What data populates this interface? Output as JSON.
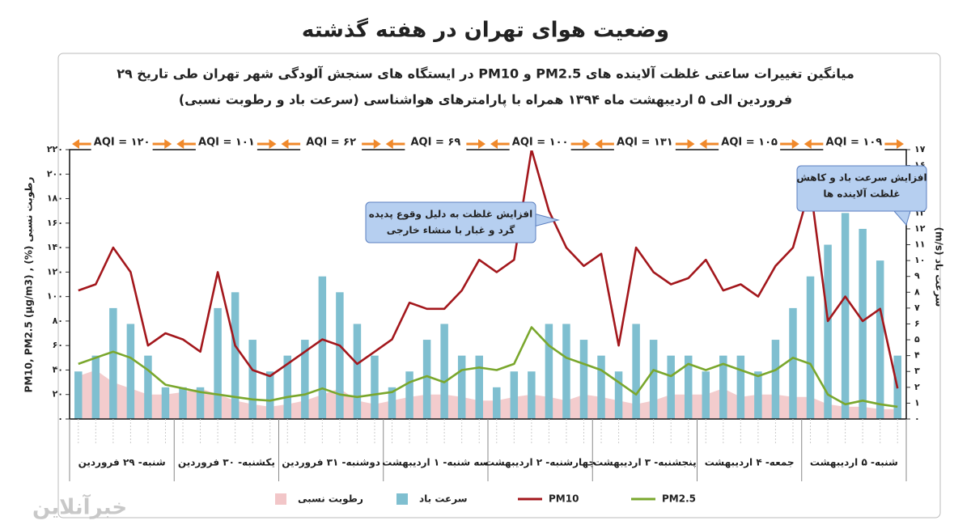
{
  "chart_data": {
    "type": "combo",
    "title": "وضعیت هوای تهران در هفته گذشته",
    "subtitle": [
      "میانگین تغییرات ساعتی غلظت آلاینده های PM2.5 و PM10 در ایستگاه های سنجش آلودگی شهر تهران طی تاریخ ۲۹",
      "فروردین الی ۵ اردیبهشت ماه ۱۳۹۴ همراه با پارامترهای هواشناسی (سرعت باد و رطوبت نسبی)"
    ],
    "y_label": "PM10, PM2.5 (µg/m3) , (%) رطوبت نسبی",
    "y2_label": "(m/s) سرعت باد",
    "days": [
      "شنبه- ۲۹ فروردین",
      "یکشنبه- ۳۰ فروردین",
      "دوشنبه- ۳۱ فروردین",
      "سه شنبه- ۱ اردیبهشت",
      "چهارشنبه- ۲ اردیبهشت",
      "پنجشنبه- ۳ اردیبهشت",
      "جمعه- ۴ اردیبهشت",
      "شنبه- ۵ اردیبهشت"
    ],
    "aqi": [
      "AQI = ۱۲۰",
      "AQI = ۱۰۱",
      "AQI = ۶۲",
      "AQI = ۶۹",
      "AQI = ۱۰۰",
      "AQI = ۱۳۱",
      "AQI = ۱۰۵",
      "AQI = ۱۰۹"
    ],
    "ylim": [
      0,
      220
    ],
    "yticks": [
      {
        "value": 0,
        "label": "۰"
      },
      {
        "value": 20,
        "label": "۲۰"
      },
      {
        "value": 40,
        "label": "۴۰"
      },
      {
        "value": 60,
        "label": "۶۰"
      },
      {
        "value": 80,
        "label": "۸۰"
      },
      {
        "value": 100,
        "label": "۱۰۰"
      },
      {
        "value": 120,
        "label": "۱۲۰"
      },
      {
        "value": 140,
        "label": "۱۴۰"
      },
      {
        "value": 160,
        "label": "۱۶۰"
      },
      {
        "value": 180,
        "label": "۱۸۰"
      },
      {
        "value": 200,
        "label": "۲۰۰"
      },
      {
        "value": 220,
        "label": "۲۲۰"
      }
    ],
    "y2lim": [
      0,
      17
    ],
    "y2ticks": [
      {
        "value": 0,
        "label": "۰"
      },
      {
        "value": 1,
        "label": "۱"
      },
      {
        "value": 2,
        "label": "۲"
      },
      {
        "value": 3,
        "label": "۳"
      },
      {
        "value": 4,
        "label": "۴"
      },
      {
        "value": 5,
        "label": "۵"
      },
      {
        "value": 6,
        "label": "۶"
      },
      {
        "value": 7,
        "label": "۷"
      },
      {
        "value": 8,
        "label": "۸"
      },
      {
        "value": 9,
        "label": "۹"
      },
      {
        "value": 10,
        "label": "۱۰"
      },
      {
        "value": 11,
        "label": "۱۱"
      },
      {
        "value": 12,
        "label": "۱۲"
      },
      {
        "value": 13,
        "label": "۱۳"
      },
      {
        "value": 14,
        "label": "۱۴"
      },
      {
        "value": 15,
        "label": "۱۵"
      },
      {
        "value": 16,
        "label": "۱۶"
      },
      {
        "value": 17,
        "label": "۱۷"
      }
    ],
    "series": [
      {
        "name": "رطوبت نسبی",
        "type": "area",
        "color": "#f2c6c8",
        "values": [
          35,
          40,
          30,
          25,
          20,
          20,
          22,
          25,
          20,
          15,
          12,
          10,
          12,
          15,
          20,
          25,
          15,
          12,
          15,
          18,
          20,
          20,
          18,
          15,
          15,
          18,
          20,
          18,
          15,
          20,
          18,
          15,
          12,
          15,
          20,
          20,
          20,
          25,
          18,
          20,
          20,
          18,
          18,
          12,
          10,
          10,
          8,
          8
        ]
      },
      {
        "name": "سرعت باد",
        "type": "bar",
        "axis": "y2",
        "color": "#7fbfd0",
        "values": [
          3,
          4,
          7,
          6,
          4,
          2,
          2,
          2,
          7,
          8,
          5,
          3,
          4,
          5,
          9,
          8,
          6,
          4,
          2,
          3,
          5,
          6,
          4,
          4,
          2,
          3,
          3,
          6,
          6,
          5,
          4,
          3,
          6,
          5,
          4,
          4,
          3,
          4,
          4,
          3,
          5,
          7,
          9,
          11,
          13,
          12,
          10,
          4
        ]
      },
      {
        "name": "PM10",
        "type": "line",
        "color": "#a3171c",
        "values": [
          105,
          110,
          140,
          120,
          60,
          70,
          65,
          55,
          120,
          60,
          40,
          35,
          45,
          55,
          65,
          60,
          45,
          55,
          65,
          95,
          90,
          90,
          105,
          130,
          120,
          130,
          220,
          170,
          140,
          125,
          135,
          60,
          140,
          120,
          110,
          115,
          130,
          105,
          110,
          100,
          125,
          140,
          190,
          80,
          100,
          80,
          90,
          25
        ]
      },
      {
        "name": "PM2.5",
        "type": "line",
        "color": "#7aa72d",
        "values": [
          45,
          50,
          55,
          50,
          40,
          28,
          25,
          22,
          20,
          18,
          16,
          15,
          18,
          20,
          25,
          20,
          18,
          20,
          22,
          30,
          35,
          30,
          40,
          42,
          40,
          45,
          75,
          60,
          50,
          45,
          40,
          30,
          20,
          40,
          35,
          45,
          40,
          45,
          40,
          35,
          40,
          50,
          45,
          20,
          12,
          15,
          12,
          10
        ]
      }
    ],
    "annotations": [
      {
        "lines": [
          "افزایش غلظت به دلیل وقوع پدیده",
          "گرد و غبار با منشاء خارجی"
        ]
      },
      {
        "lines": [
          "افزایش سرعت باد و کاهش",
          "غلظت آلاینده ها"
        ]
      }
    ],
    "watermark": "خبرآنلاین"
  }
}
